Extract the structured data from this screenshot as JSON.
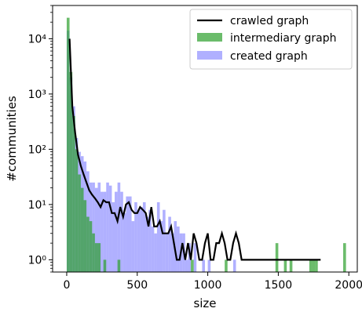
{
  "chart_data": {
    "type": "histogram+line",
    "xlabel": "size",
    "ylabel": "#communities",
    "xlim": [
      -100,
      2060
    ],
    "ylim": [
      0.6,
      40000
    ],
    "yscale": "log",
    "xticks": [
      0,
      500,
      1000,
      1500,
      2000
    ],
    "xtick_labels": [
      "0",
      "500",
      "1000",
      "1500",
      "2000"
    ],
    "yticks": [
      1,
      10,
      100,
      1000,
      10000
    ],
    "ytick_labels": [
      "10⁰",
      "10¹",
      "10²",
      "10³",
      "10⁴"
    ],
    "legend_position": "top-right",
    "legend": [
      {
        "label": "crawled graph",
        "kind": "line",
        "color": "#000000"
      },
      {
        "label": "intermediary graph",
        "kind": "bar",
        "color": "#2ca02c"
      },
      {
        "label": "created graph",
        "kind": "bar",
        "color": "#7b7bff"
      }
    ],
    "series": [
      {
        "name": "created graph",
        "kind": "hist",
        "color": "#7b7bff",
        "opacity": 0.6,
        "bin_width": 20,
        "bins": [
          [
            0,
            14000
          ],
          [
            20,
            2000
          ],
          [
            40,
            600
          ],
          [
            60,
            160
          ],
          [
            80,
            90
          ],
          [
            100,
            75
          ],
          [
            120,
            60
          ],
          [
            140,
            40
          ],
          [
            160,
            25
          ],
          [
            180,
            25
          ],
          [
            200,
            20
          ],
          [
            220,
            25
          ],
          [
            240,
            17
          ],
          [
            260,
            17
          ],
          [
            280,
            25
          ],
          [
            300,
            22
          ],
          [
            320,
            11
          ],
          [
            340,
            17
          ],
          [
            360,
            25
          ],
          [
            380,
            17
          ],
          [
            400,
            7
          ],
          [
            420,
            14
          ],
          [
            440,
            14
          ],
          [
            460,
            5
          ],
          [
            480,
            11
          ],
          [
            500,
            8
          ],
          [
            520,
            9
          ],
          [
            540,
            11
          ],
          [
            560,
            6
          ],
          [
            580,
            8
          ],
          [
            600,
            4
          ],
          [
            620,
            3
          ],
          [
            640,
            11
          ],
          [
            660,
            5
          ],
          [
            680,
            8
          ],
          [
            700,
            3
          ],
          [
            720,
            6
          ],
          [
            740,
            3
          ],
          [
            760,
            5
          ],
          [
            780,
            4
          ],
          [
            800,
            3
          ],
          [
            820,
            3
          ],
          [
            840,
            1
          ],
          [
            860,
            2
          ],
          [
            900,
            2
          ],
          [
            960,
            1
          ],
          [
            1000,
            1
          ],
          [
            1180,
            1
          ]
        ]
      },
      {
        "name": "intermediary graph",
        "kind": "hist",
        "color": "#2ca02c",
        "opacity": 0.7,
        "bin_width": 20,
        "bins": [
          [
            0,
            24000
          ],
          [
            20,
            2500
          ],
          [
            40,
            400
          ],
          [
            60,
            100
          ],
          [
            80,
            35
          ],
          [
            100,
            20
          ],
          [
            120,
            12
          ],
          [
            140,
            6
          ],
          [
            160,
            5
          ],
          [
            180,
            3
          ],
          [
            200,
            2
          ],
          [
            220,
            2
          ],
          [
            260,
            1
          ],
          [
            360,
            1
          ],
          [
            880,
            1
          ],
          [
            1120,
            1
          ],
          [
            1480,
            2
          ],
          [
            1540,
            1
          ],
          [
            1580,
            1
          ],
          [
            1720,
            1
          ],
          [
            1740,
            1
          ],
          [
            1760,
            1
          ],
          [
            1960,
            2
          ]
        ]
      },
      {
        "name": "crawled graph",
        "kind": "line",
        "color": "#000000",
        "x": [
          20,
          40,
          60,
          80,
          100,
          120,
          140,
          160,
          180,
          200,
          220,
          240,
          260,
          280,
          300,
          320,
          340,
          360,
          380,
          400,
          420,
          440,
          460,
          480,
          500,
          520,
          540,
          560,
          580,
          600,
          620,
          640,
          660,
          680,
          700,
          720,
          740,
          760,
          780,
          800,
          820,
          840,
          860,
          880,
          900,
          920,
          940,
          960,
          980,
          1000,
          1020,
          1040,
          1060,
          1080,
          1100,
          1120,
          1140,
          1160,
          1180,
          1200,
          1220,
          1240,
          1260,
          1280,
          1300,
          1320,
          1340,
          1360,
          1380,
          1400,
          1420,
          1440,
          1460,
          1480,
          1500,
          1520,
          1540,
          1560,
          1580,
          1600,
          1620,
          1640,
          1660,
          1680,
          1700,
          1720,
          1740,
          1760,
          1780,
          1800
        ],
        "y": [
          10000,
          600,
          200,
          80,
          50,
          35,
          25,
          18,
          15,
          13,
          11,
          9,
          12,
          11,
          11,
          7,
          7,
          5,
          9,
          6,
          10,
          11,
          8,
          7,
          7,
          9,
          8,
          7,
          4,
          9,
          4,
          4,
          5,
          3,
          3,
          3,
          4,
          2,
          1,
          1,
          2,
          1,
          2,
          1,
          3,
          2,
          1,
          1,
          2,
          3,
          1,
          1,
          2,
          2,
          3,
          2,
          1,
          1,
          2,
          3,
          2,
          1,
          1,
          1,
          1,
          1,
          1,
          1,
          1,
          1,
          1,
          1,
          1,
          1,
          1,
          1,
          1,
          1,
          1,
          1,
          1,
          1,
          1,
          1,
          1,
          1,
          1,
          1,
          1,
          1
        ]
      }
    ]
  }
}
